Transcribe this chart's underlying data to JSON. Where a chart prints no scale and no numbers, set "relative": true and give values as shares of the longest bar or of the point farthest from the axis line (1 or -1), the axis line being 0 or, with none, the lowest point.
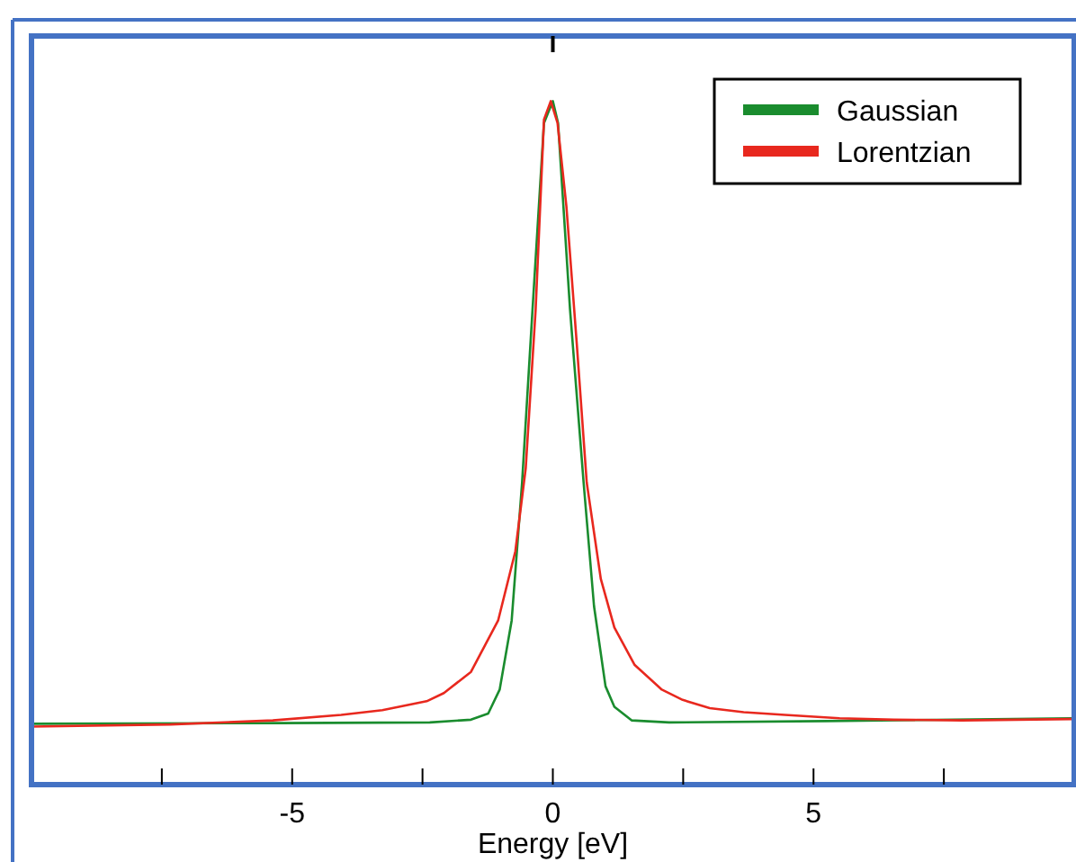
{
  "chart_data": {
    "type": "line",
    "xlabel": "Energy [eV]",
    "relative": true,
    "xlim": [
      -10,
      10
    ],
    "xticks": [
      {
        "value": -7.5,
        "label": null
      },
      -5,
      {
        "value": -2.5,
        "label": null
      },
      0,
      {
        "value": 2.5,
        "label": null
      },
      5,
      {
        "value": 7.5,
        "label": null
      }
    ],
    "legend": "top right",
    "grid": false,
    "marker": "none",
    "line_style": "solid",
    "series": [
      {
        "name": "Gaussian",
        "color": "#1a8c2e",
        "x": [
          -10,
          -5.24,
          -2.36,
          -1.57,
          -1.24,
          -1.02,
          -0.79,
          -0.59,
          -0.39,
          -0.17,
          0,
          0.1,
          0.33,
          0.59,
          0.79,
          1.01,
          1.18,
          1.51,
          2.23,
          5.24,
          9.95
        ],
        "values": [
          0.089,
          0.09,
          0.091,
          0.095,
          0.104,
          0.139,
          0.24,
          0.442,
          0.695,
          0.968,
          1,
          0.968,
          0.695,
          0.442,
          0.261,
          0.144,
          0.114,
          0.094,
          0.091,
          0.093,
          0.097
        ]
      },
      {
        "name": "Lorentzian",
        "color": "#e8281e",
        "x": [
          -10,
          -7.33,
          -5.37,
          -4.06,
          -3.27,
          -2.42,
          -2.09,
          -1.57,
          -1.05,
          -0.72,
          -0.52,
          -0.33,
          -0.17,
          -0.04,
          0.09,
          0.26,
          0.46,
          0.65,
          0.92,
          1.18,
          1.57,
          2.09,
          2.49,
          3.01,
          3.66,
          4.45,
          5.5,
          6.54,
          7.85,
          9.95
        ],
        "values": [
          0.085,
          0.088,
          0.094,
          0.102,
          0.109,
          0.122,
          0.134,
          0.165,
          0.24,
          0.341,
          0.463,
          0.695,
          0.973,
          1,
          0.968,
          0.846,
          0.644,
          0.442,
          0.301,
          0.23,
          0.175,
          0.139,
          0.124,
          0.112,
          0.106,
          0.102,
          0.097,
          0.095,
          0.094,
          0.096
        ]
      }
    ]
  }
}
